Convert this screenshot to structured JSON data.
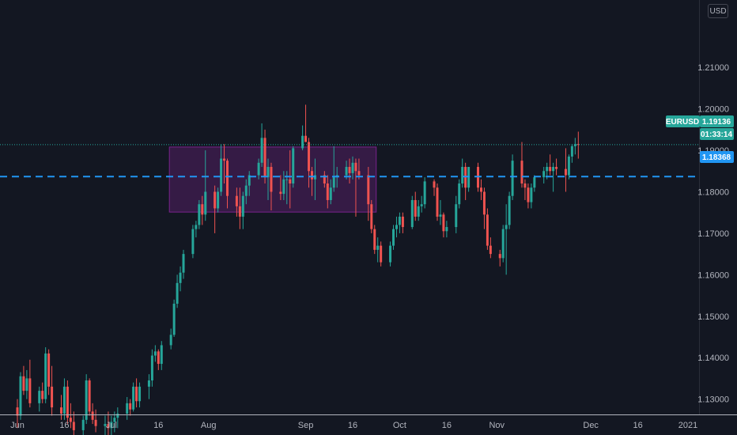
{
  "currency_button": "USD",
  "symbol_tag": {
    "symbol": "EURUSD",
    "price": "1.19136",
    "countdown": "01:33:14",
    "color": "#26a69a"
  },
  "line_tag": {
    "price": "1.18368",
    "color": "#2196f3"
  },
  "colors": {
    "background": "#131722",
    "up": "#26a69a",
    "down": "#ef5350",
    "zone": "#9c27b0"
  },
  "chart_data": {
    "type": "candlestick",
    "grid": false,
    "ylim": [
      1.1263,
      1.2253
    ],
    "y_ticks": [
      "1.21000",
      "1.20000",
      "1.19000",
      "1.18000",
      "1.17000",
      "1.16000",
      "1.15000",
      "1.14000",
      "1.13000"
    ],
    "x_ticks": [
      "Jun",
      "16",
      "Jul",
      "16",
      "Aug",
      "Sep",
      "16",
      "Oct",
      "16",
      "Nov",
      "Dec",
      "16",
      "2021"
    ],
    "horizontal_line": 1.18368,
    "last_price": 1.19136,
    "rectangle": {
      "start": "2020-07-20",
      "end": "2020-09-23",
      "low": 1.1751,
      "high": 1.1908
    },
    "candles": [
      [
        "2020-06-01",
        1.128,
        1.13,
        1.123,
        1.126
      ],
      [
        "2020-06-02",
        1.126,
        1.1365,
        1.125,
        1.1355
      ],
      [
        "2020-06-03",
        1.1355,
        1.138,
        1.131,
        1.132
      ],
      [
        "2020-06-04",
        1.132,
        1.137,
        1.13,
        1.135
      ],
      [
        "2020-06-05",
        1.135,
        1.1395,
        1.128,
        1.129
      ],
      [
        "2020-06-08",
        1.129,
        1.133,
        1.127,
        1.132
      ],
      [
        "2020-06-09",
        1.132,
        1.134,
        1.129,
        1.13
      ],
      [
        "2020-06-10",
        1.13,
        1.1425,
        1.129,
        1.141
      ],
      [
        "2020-06-11",
        1.141,
        1.142,
        1.131,
        1.133
      ],
      [
        "2020-06-12",
        1.133,
        1.138,
        1.126,
        1.128
      ],
      [
        "2020-06-15",
        1.128,
        1.131,
        1.125,
        1.1265
      ],
      [
        "2020-06-16",
        1.1265,
        1.135,
        1.125,
        1.133
      ],
      [
        "2020-06-17",
        1.133,
        1.1345,
        1.124,
        1.1255
      ],
      [
        "2020-06-18",
        1.1255,
        1.129,
        1.123,
        1.1245
      ],
      [
        "2020-06-19",
        1.1245,
        1.127,
        1.12,
        1.1225
      ],
      [
        "2020-06-22",
        1.1225,
        1.126,
        1.121,
        1.125
      ],
      [
        "2020-06-23",
        1.125,
        1.136,
        1.124,
        1.1345
      ],
      [
        "2020-06-24",
        1.1345,
        1.135,
        1.126,
        1.127
      ],
      [
        "2020-06-25",
        1.127,
        1.129,
        1.124,
        1.125
      ],
      [
        "2020-06-26",
        1.125,
        1.1275,
        1.122,
        1.1235
      ],
      [
        "2020-06-29",
        1.1235,
        1.126,
        1.12,
        1.124
      ],
      [
        "2020-06-30",
        1.124,
        1.127,
        1.121,
        1.123
      ],
      [
        "2020-07-01",
        1.123,
        1.126,
        1.12,
        1.1245
      ],
      [
        "2020-07-02",
        1.1245,
        1.127,
        1.122,
        1.1255
      ],
      [
        "2020-07-03",
        1.1255,
        1.128,
        1.123,
        1.1265
      ],
      [
        "2020-07-06",
        1.1265,
        1.1305,
        1.125,
        1.129
      ],
      [
        "2020-07-07",
        1.129,
        1.13,
        1.126,
        1.1275
      ],
      [
        "2020-07-08",
        1.1275,
        1.134,
        1.127,
        1.133
      ],
      [
        "2020-07-09",
        1.133,
        1.135,
        1.128,
        1.1295
      ],
      [
        "2020-07-10",
        1.1295,
        1.134,
        1.128,
        1.133
      ],
      [
        "2020-07-13",
        1.133,
        1.136,
        1.13,
        1.1345
      ],
      [
        "2020-07-14",
        1.1345,
        1.142,
        1.133,
        1.1405
      ],
      [
        "2020-07-15",
        1.1405,
        1.143,
        1.139,
        1.1415
      ],
      [
        "2020-07-16",
        1.1415,
        1.142,
        1.137,
        1.1385
      ],
      [
        "2020-07-17",
        1.1385,
        1.144,
        1.137,
        1.143
      ],
      [
        "2020-07-20",
        1.143,
        1.147,
        1.142,
        1.1455
      ],
      [
        "2020-07-21",
        1.1455,
        1.154,
        1.145,
        1.153
      ],
      [
        "2020-07-22",
        1.153,
        1.16,
        1.152,
        1.158
      ],
      [
        "2020-07-23",
        1.158,
        1.162,
        1.156,
        1.1605
      ],
      [
        "2020-07-24",
        1.1605,
        1.166,
        1.159,
        1.165
      ],
      [
        "2020-07-27",
        1.165,
        1.172,
        1.164,
        1.171
      ],
      [
        "2020-07-28",
        1.171,
        1.173,
        1.169,
        1.172
      ],
      [
        "2020-07-29",
        1.172,
        1.178,
        1.171,
        1.177
      ],
      [
        "2020-07-30",
        1.177,
        1.179,
        1.172,
        1.1745
      ],
      [
        "2020-07-31",
        1.1745,
        1.19,
        1.173,
        1.18
      ],
      [
        "2020-08-03",
        1.18,
        1.1815,
        1.17,
        1.176
      ],
      [
        "2020-08-04",
        1.176,
        1.181,
        1.175,
        1.18
      ],
      [
        "2020-08-05",
        1.18,
        1.1915,
        1.179,
        1.188
      ],
      [
        "2020-08-06",
        1.188,
        1.1915,
        1.182,
        1.1875
      ],
      [
        "2020-08-07",
        1.1875,
        1.188,
        1.176,
        1.179
      ],
      [
        "2020-08-10",
        1.179,
        1.181,
        1.174,
        1.1765
      ],
      [
        "2020-08-11",
        1.1765,
        1.181,
        1.171,
        1.174
      ],
      [
        "2020-08-12",
        1.174,
        1.18,
        1.171,
        1.179
      ],
      [
        "2020-08-13",
        1.179,
        1.183,
        1.177,
        1.1815
      ],
      [
        "2020-08-14",
        1.1815,
        1.185,
        1.179,
        1.184
      ],
      [
        "2020-08-17",
        1.184,
        1.188,
        1.183,
        1.187
      ],
      [
        "2020-08-18",
        1.187,
        1.1965,
        1.186,
        1.193
      ],
      [
        "2020-08-19",
        1.193,
        1.195,
        1.182,
        1.1835
      ],
      [
        "2020-08-20",
        1.1835,
        1.188,
        1.178,
        1.186
      ],
      [
        "2020-08-21",
        1.186,
        1.187,
        1.1755,
        1.18
      ],
      [
        "2020-08-24",
        1.18,
        1.184,
        1.178,
        1.1795
      ],
      [
        "2020-08-25",
        1.1795,
        1.185,
        1.178,
        1.183
      ],
      [
        "2020-08-26",
        1.183,
        1.185,
        1.177,
        1.183
      ],
      [
        "2020-08-27",
        1.183,
        1.19,
        1.176,
        1.182
      ],
      [
        "2020-08-28",
        1.182,
        1.191,
        1.181,
        1.1905
      ],
      [
        "2020-08-31",
        1.1905,
        1.196,
        1.19,
        1.1935
      ],
      [
        "2020-09-01",
        1.1935,
        1.201,
        1.192,
        1.192
      ],
      [
        "2020-09-02",
        1.192,
        1.193,
        1.181,
        1.185
      ],
      [
        "2020-09-03",
        1.185,
        1.186,
        1.179,
        1.183
      ],
      [
        "2020-09-04",
        1.183,
        1.188,
        1.178,
        1.184
      ],
      [
        "2020-09-07",
        1.184,
        1.185,
        1.181,
        1.182
      ],
      [
        "2020-09-08",
        1.182,
        1.184,
        1.176,
        1.178
      ],
      [
        "2020-09-09",
        1.178,
        1.183,
        1.177,
        1.181
      ],
      [
        "2020-09-10",
        1.181,
        1.191,
        1.18,
        1.1835
      ],
      [
        "2020-09-11",
        1.1835,
        1.186,
        1.181,
        1.184
      ],
      [
        "2020-09-14",
        1.184,
        1.1875,
        1.183,
        1.186
      ],
      [
        "2020-09-15",
        1.186,
        1.188,
        1.182,
        1.1845
      ],
      [
        "2020-09-16",
        1.1845,
        1.1885,
        1.183,
        1.187
      ],
      [
        "2020-09-17",
        1.187,
        1.188,
        1.174,
        1.185
      ],
      [
        "2020-09-18",
        1.185,
        1.188,
        1.183,
        1.184
      ],
      [
        "2020-09-21",
        1.184,
        1.186,
        1.173,
        1.177
      ],
      [
        "2020-09-22",
        1.177,
        1.178,
        1.17,
        1.171
      ],
      [
        "2020-09-23",
        1.171,
        1.172,
        1.165,
        1.166
      ],
      [
        "2020-09-24",
        1.166,
        1.169,
        1.163,
        1.167
      ],
      [
        "2020-09-25",
        1.167,
        1.168,
        1.162,
        1.163
      ],
      [
        "2020-09-28",
        1.163,
        1.168,
        1.162,
        1.167
      ],
      [
        "2020-09-29",
        1.167,
        1.172,
        1.166,
        1.171
      ],
      [
        "2020-09-30",
        1.171,
        1.174,
        1.169,
        1.172
      ],
      [
        "2020-10-01",
        1.172,
        1.175,
        1.17,
        1.174
      ],
      [
        "2020-10-02",
        1.174,
        1.175,
        1.17,
        1.1715
      ],
      [
        "2020-10-05",
        1.1715,
        1.179,
        1.171,
        1.178
      ],
      [
        "2020-10-06",
        1.178,
        1.18,
        1.173,
        1.174
      ],
      [
        "2020-10-07",
        1.174,
        1.178,
        1.173,
        1.1765
      ],
      [
        "2020-10-08",
        1.1765,
        1.179,
        1.175,
        1.177
      ],
      [
        "2020-10-09",
        1.177,
        1.1835,
        1.176,
        1.1825
      ],
      [
        "2020-10-12",
        1.1825,
        1.183,
        1.179,
        1.181
      ],
      [
        "2020-10-13",
        1.181,
        1.182,
        1.173,
        1.174
      ],
      [
        "2020-10-14",
        1.174,
        1.178,
        1.172,
        1.1745
      ],
      [
        "2020-10-15",
        1.1745,
        1.175,
        1.169,
        1.1705
      ],
      [
        "2020-10-16",
        1.1705,
        1.173,
        1.169,
        1.1715
      ],
      [
        "2020-10-19",
        1.1715,
        1.179,
        1.17,
        1.177
      ],
      [
        "2020-10-20",
        1.177,
        1.183,
        1.176,
        1.182
      ],
      [
        "2020-10-21",
        1.182,
        1.188,
        1.181,
        1.186
      ],
      [
        "2020-10-22",
        1.186,
        1.187,
        1.178,
        1.181
      ],
      [
        "2020-10-23",
        1.181,
        1.186,
        1.18,
        1.186
      ],
      [
        "2020-10-26",
        1.186,
        1.187,
        1.18,
        1.181
      ],
      [
        "2020-10-27",
        1.181,
        1.183,
        1.178,
        1.18
      ],
      [
        "2020-10-28",
        1.18,
        1.181,
        1.171,
        1.1745
      ],
      [
        "2020-10-29",
        1.1745,
        1.176,
        1.166,
        1.167
      ],
      [
        "2020-10-30",
        1.167,
        1.169,
        1.164,
        1.165
      ],
      [
        "2020-11-02",
        1.165,
        1.166,
        1.162,
        1.164
      ],
      [
        "2020-11-03",
        1.164,
        1.172,
        1.163,
        1.171
      ],
      [
        "2020-11-04",
        1.171,
        1.177,
        1.16,
        1.172
      ],
      [
        "2020-11-05",
        1.172,
        1.18,
        1.171,
        1.179
      ],
      [
        "2020-11-06",
        1.179,
        1.189,
        1.178,
        1.1875
      ],
      [
        "2020-11-09",
        1.1875,
        1.192,
        1.181,
        1.182
      ],
      [
        "2020-11-10",
        1.182,
        1.183,
        1.178,
        1.181
      ],
      [
        "2020-11-11",
        1.181,
        1.182,
        1.176,
        1.1775
      ],
      [
        "2020-11-12",
        1.1775,
        1.182,
        1.176,
        1.181
      ],
      [
        "2020-11-13",
        1.181,
        1.184,
        1.18,
        1.1835
      ],
      [
        "2020-11-16",
        1.1835,
        1.186,
        1.182,
        1.185
      ],
      [
        "2020-11-17",
        1.185,
        1.187,
        1.183,
        1.186
      ],
      [
        "2020-11-18",
        1.186,
        1.189,
        1.184,
        1.185
      ],
      [
        "2020-11-19",
        1.185,
        1.187,
        1.18,
        1.186
      ],
      [
        "2020-11-20",
        1.186,
        1.188,
        1.184,
        1.1855
      ],
      [
        "2020-11-23",
        1.1855,
        1.1905,
        1.18,
        1.184
      ],
      [
        "2020-11-24",
        1.184,
        1.189,
        1.183,
        1.1885
      ],
      [
        "2020-11-25",
        1.1885,
        1.1915,
        1.187,
        1.191
      ],
      [
        "2020-11-26",
        1.191,
        1.193,
        1.189,
        1.1915
      ],
      [
        "2020-11-27",
        1.1915,
        1.1945,
        1.188,
        1.1914
      ]
    ]
  }
}
